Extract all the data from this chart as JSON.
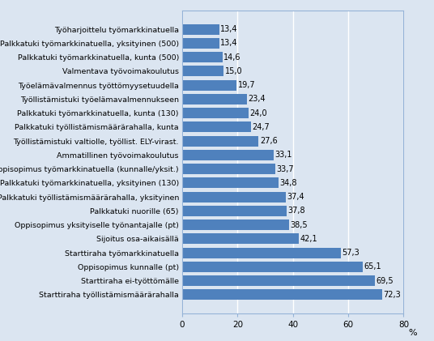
{
  "categories": [
    "Työharjoittelu työmarkkinatuella",
    "Palkkatuki työmarkkinatuella, yksityinen (500)",
    "Palkkatuki työmarkkinatuella, kunta (500)",
    "Valmentava työvoimakoulutus",
    "Työelämävalmennus työttömyysetuudella",
    "Työllistämistuki työelämavalmennukseen",
    "Palkkatuki työmarkkinatuella, kunta (130)",
    "Palkkatuki työllistämismäärärahalla, kunta",
    "Työllistämistuki valtiolle, työllist. ELY-virast.",
    "Ammatillinen työvoimakoulutus",
    "Oppisopimus työmarkkinatuella (kunnalle/yksit.)",
    "Palkkatuki työmarkkinatuella, yksityinen (130)",
    "Palkkatuki työllistämismäärärahalla, yksityinen",
    "Palkkatuki nuorille (65)",
    "Oppisopimus yksityiselle työnantajalle (pt)",
    "Sijoitus osa-aikaisällä",
    "Starttiraha työmarkkinatuella",
    "Oppisopimus kunnalle (pt)",
    "Starttiraha ei-työttömälle",
    "Starttiraha työllistämismäärärahalla"
  ],
  "values": [
    13.4,
    13.4,
    14.6,
    15.0,
    19.7,
    23.4,
    24.0,
    24.7,
    27.6,
    33.1,
    33.7,
    34.8,
    37.4,
    37.8,
    38.5,
    42.1,
    57.3,
    65.1,
    69.5,
    72.3
  ],
  "bar_color": "#4F81BD",
  "background_color": "#DBE5F1",
  "plot_bg_color": "#DBE5F1",
  "grid_color": "#FFFFFF",
  "border_color": "#95B3D7",
  "xlabel": "%",
  "xlim": [
    0,
    80
  ],
  "xticks": [
    0,
    20,
    40,
    60,
    80
  ],
  "label_fontsize": 6.8,
  "value_fontsize": 7.0,
  "bar_height": 0.75,
  "figsize": [
    5.36,
    4.21
  ],
  "dpi": 100
}
